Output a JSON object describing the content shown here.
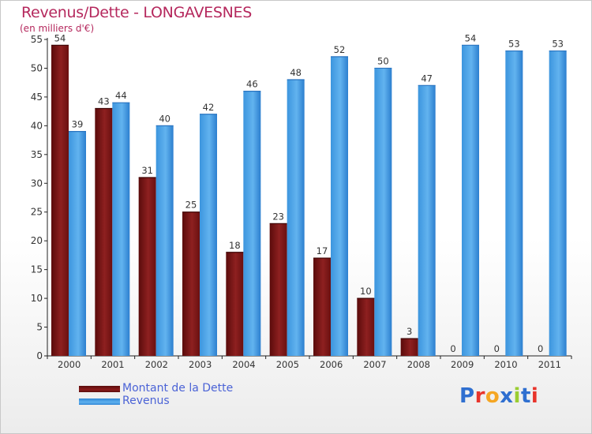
{
  "chart_data": {
    "type": "bar",
    "title": "Revenus/Dette - LONGAVESNES",
    "subtitle": "(en milliers d'€)",
    "categories": [
      "2000",
      "2001",
      "2002",
      "2003",
      "2004",
      "2005",
      "2006",
      "2007",
      "2008",
      "2009",
      "2010",
      "2011"
    ],
    "series": [
      {
        "name": "Montant de la Dette",
        "values": [
          54,
          43,
          31,
          25,
          18,
          23,
          17,
          10,
          3,
          0,
          0,
          0
        ],
        "color": "#8b1a1a"
      },
      {
        "name": "Revenus",
        "values": [
          39,
          44,
          40,
          42,
          46,
          48,
          52,
          50,
          47,
          54,
          53,
          53
        ],
        "color": "#4fa6e8"
      }
    ],
    "ylim": [
      0,
      55
    ],
    "yticks": [
      0,
      5,
      10,
      15,
      20,
      25,
      30,
      35,
      40,
      45,
      50,
      55
    ],
    "grid": false,
    "legend_position": "bottom-left"
  },
  "branding": {
    "logo_text": "Proxiti",
    "logo_letters": [
      "P",
      "r",
      "o",
      "x",
      "i",
      "t",
      "i"
    ],
    "logo_colors": [
      "#2f6fd0",
      "#e8342b",
      "#f5a623",
      "#2f6fd0",
      "#9acd32",
      "#2f6fd0",
      "#e8342b"
    ]
  }
}
